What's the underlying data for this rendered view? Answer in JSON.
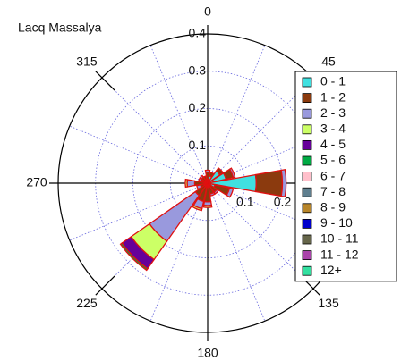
{
  "chart_data": {
    "type": "windrose",
    "title": "Lacq Massalya",
    "directions": [
      0,
      22.5,
      45,
      67.5,
      90,
      112.5,
      135,
      157.5,
      180,
      202.5,
      225,
      247.5,
      270,
      292.5,
      315,
      337.5
    ],
    "rlim": [
      0,
      0.4
    ],
    "rticks": [
      0.1,
      0.2,
      0.3,
      0.4
    ],
    "thetaticks": [
      0,
      45,
      90,
      135,
      180,
      225,
      270,
      315
    ],
    "grid": true,
    "legend": "right",
    "series": [
      {
        "name": "0 - 1",
        "color": "#40e0e0",
        "values": [
          0.01,
          0.02,
          0.04,
          0.05,
          0.13,
          0.02,
          0.01,
          0.01,
          0.01,
          0.01,
          0.01,
          0.01,
          0.005,
          0.01,
          0.01,
          0.01
        ]
      },
      {
        "name": "1 - 2",
        "color": "#8b3a0e",
        "values": [
          0.02,
          0.01,
          0.01,
          0.02,
          0.07,
          0.04,
          0.02,
          0.02,
          0.04,
          0.04,
          0.03,
          0.01,
          0.03,
          0.01,
          0.01,
          0.01
        ]
      },
      {
        "name": "2 - 3",
        "color": "#9999dd",
        "values": [
          0.005,
          0,
          0,
          0.005,
          0.01,
          0.01,
          0.005,
          0.005,
          0.01,
          0.02,
          0.15,
          0.01,
          0.02,
          0.005,
          0.005,
          0
        ]
      },
      {
        "name": "3 - 4",
        "color": "#ccff66",
        "values": [
          0,
          0,
          0,
          0,
          0,
          0,
          0,
          0,
          0.005,
          0.005,
          0.06,
          0,
          0.005,
          0,
          0,
          0
        ]
      },
      {
        "name": "4 - 5",
        "color": "#660099",
        "values": [
          0,
          0,
          0,
          0,
          0,
          0,
          0,
          0,
          0,
          0,
          0.03,
          0,
          0,
          0,
          0,
          0
        ]
      },
      {
        "name": "5 - 6",
        "color": "#00aa44",
        "values": [
          0,
          0,
          0,
          0,
          0,
          0,
          0,
          0,
          0,
          0,
          0.005,
          0,
          0,
          0,
          0,
          0
        ]
      },
      {
        "name": "6 - 7",
        "color": "#ffc0cb",
        "values": [
          0,
          0,
          0,
          0,
          0,
          0,
          0,
          0,
          0,
          0,
          0,
          0,
          0,
          0,
          0,
          0
        ]
      },
      {
        "name": "7 - 8",
        "color": "#5f7f8f",
        "values": [
          0,
          0,
          0,
          0,
          0,
          0,
          0,
          0,
          0,
          0,
          0,
          0,
          0,
          0,
          0,
          0
        ]
      },
      {
        "name": "8 - 9",
        "color": "#b8862b",
        "values": [
          0,
          0,
          0,
          0,
          0,
          0,
          0,
          0,
          0,
          0,
          0,
          0,
          0,
          0,
          0,
          0
        ]
      },
      {
        "name": "9 - 10",
        "color": "#0000cc",
        "values": [
          0,
          0,
          0,
          0,
          0,
          0,
          0,
          0,
          0,
          0,
          0,
          0,
          0,
          0,
          0,
          0
        ]
      },
      {
        "name": "10 - 11",
        "color": "#66664a",
        "values": [
          0,
          0,
          0,
          0,
          0,
          0,
          0,
          0,
          0,
          0,
          0,
          0,
          0,
          0,
          0,
          0
        ]
      },
      {
        "name": "11 - 12",
        "color": "#aa44aa",
        "values": [
          0,
          0,
          0,
          0,
          0,
          0,
          0,
          0,
          0,
          0,
          0,
          0,
          0,
          0,
          0,
          0
        ]
      },
      {
        "name": "12+",
        "color": "#33e0a0",
        "values": [
          0,
          0,
          0,
          0,
          0,
          0,
          0,
          0,
          0,
          0,
          0,
          0,
          0,
          0,
          0,
          0
        ]
      }
    ]
  }
}
